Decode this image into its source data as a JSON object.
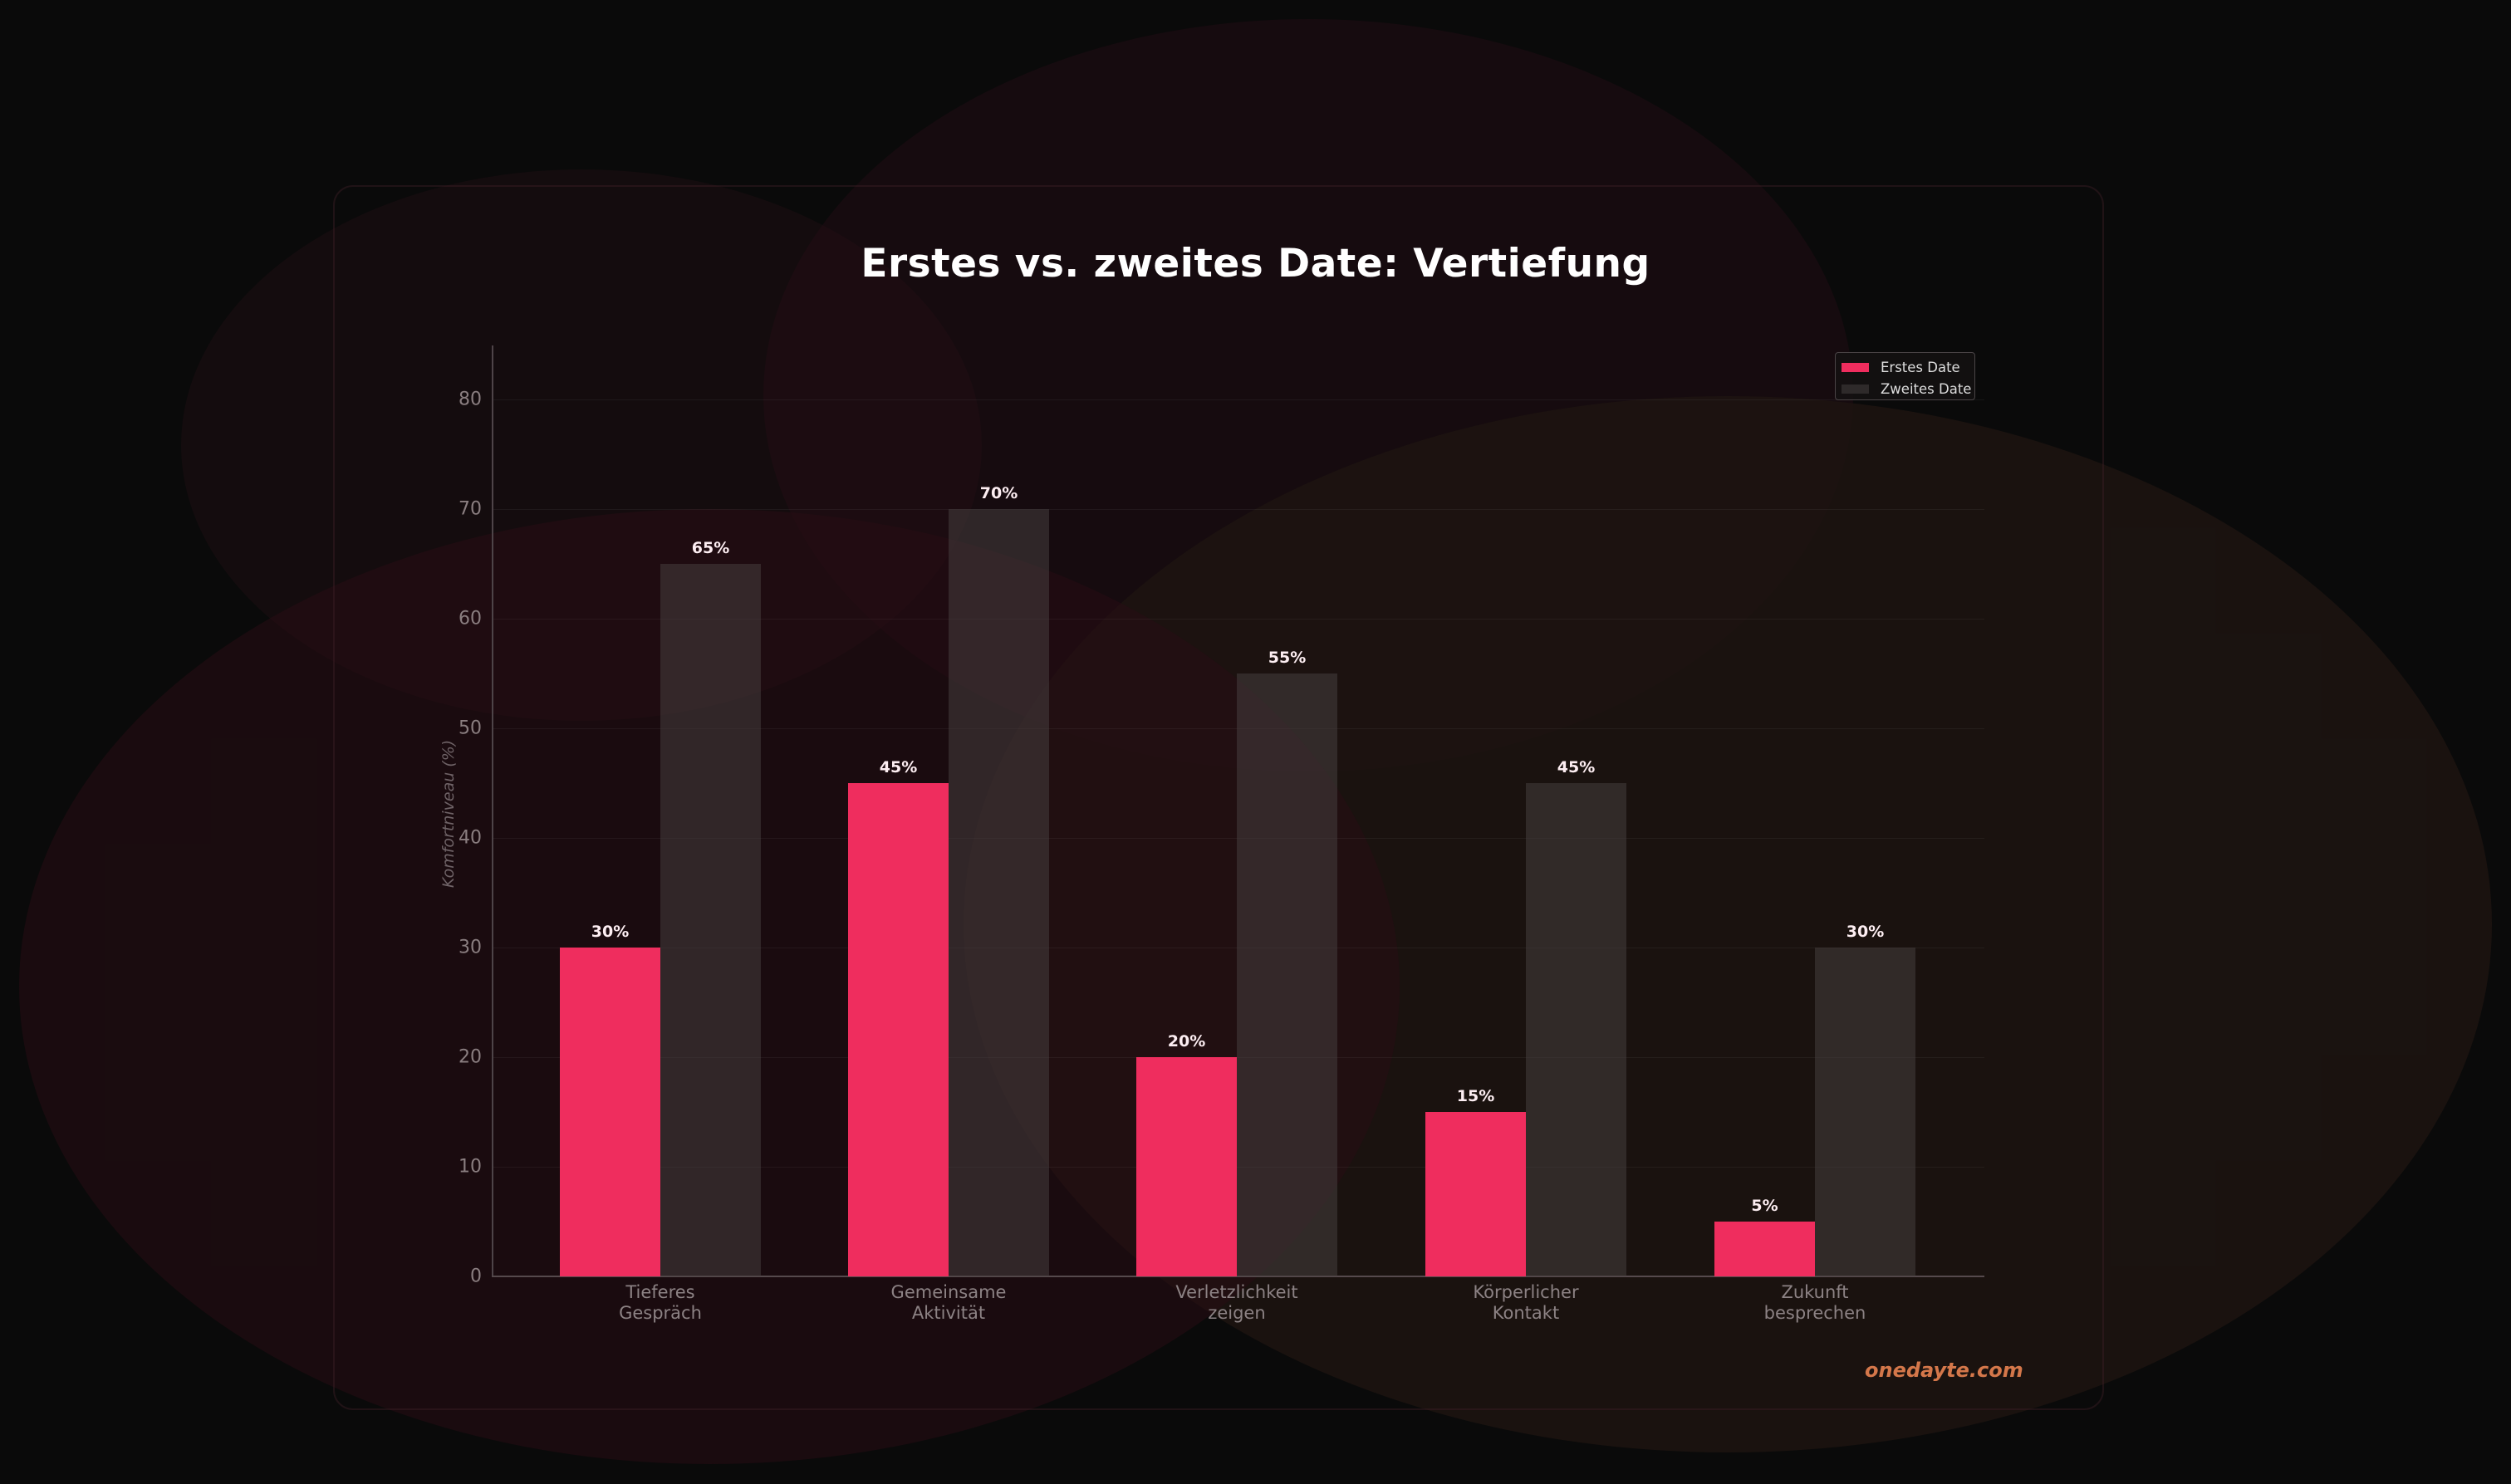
{
  "title": "Erstes vs. zweites Date: Vertiefung",
  "watermark": "onedayte.com",
  "colors": {
    "background": "#0a0a0a",
    "erstes_date": "#ef2d5e",
    "zweites_date": "#3a3434",
    "watermark": "#d4774a",
    "title": "#ffffff"
  },
  "legend": {
    "items": [
      {
        "label": "Erstes Date",
        "color": "#ef2d5e"
      },
      {
        "label": "Zweites Date",
        "color": "#3a3434"
      }
    ]
  },
  "axes": {
    "ylabel": "Komfortniveau (%)",
    "yticks": [
      "0",
      "10",
      "20",
      "30",
      "40",
      "50",
      "60",
      "70",
      "80"
    ],
    "xticks": [
      "Tieferes\nGespräch",
      "Gemeinsame\nAktivität",
      "Verletzlichkeit\nzeigen",
      "Körperlicher\nKontakt",
      "Zukunft\nbesprechen"
    ]
  },
  "value_labels": {
    "first": [
      "30%",
      "45%",
      "20%",
      "15%",
      "5%"
    ],
    "second": [
      "65%",
      "70%",
      "55%",
      "45%",
      "30%"
    ]
  },
  "chart_data": {
    "type": "bar",
    "title": "Erstes vs. zweites Date: Vertiefung",
    "xlabel": "",
    "ylabel": "Komfortniveau (%)",
    "categories": [
      "Tieferes Gespräch",
      "Gemeinsame Aktivität",
      "Verletzlichkeit zeigen",
      "Körperlicher Kontakt",
      "Zukunft besprechen"
    ],
    "series": [
      {
        "name": "Erstes Date",
        "values": [
          30,
          45,
          20,
          15,
          5
        ],
        "color": "#ef2d5e"
      },
      {
        "name": "Zweites Date",
        "values": [
          65,
          70,
          55,
          45,
          30
        ],
        "color": "#3a3434"
      }
    ],
    "ylim": [
      0,
      85
    ],
    "yticks": [
      0,
      10,
      20,
      30,
      40,
      50,
      60,
      70,
      80
    ],
    "grid": true,
    "legend_position": "upper right",
    "data_labels": true
  }
}
